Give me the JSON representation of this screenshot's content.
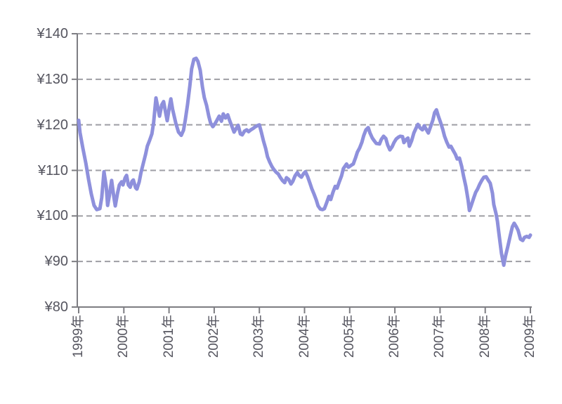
{
  "chart_data": {
    "type": "line",
    "title": "",
    "x_tick_labels": [
      "1999年",
      "2000年",
      "2001年",
      "2002年",
      "2003年",
      "2004年",
      "2005年",
      "2006年",
      "2007年",
      "2008年",
      "2009年"
    ],
    "y_tick_labels": [
      "¥140",
      "¥130",
      "¥120",
      "¥110",
      "¥100",
      "¥90",
      "¥80"
    ],
    "y_tick_values": [
      140,
      130,
      120,
      110,
      100,
      90,
      80
    ],
    "x_range": [
      1999,
      2009
    ],
    "ylim": [
      80,
      140
    ],
    "grid": {
      "horizontal": "dashed",
      "vertical": "none"
    },
    "legend": "none",
    "colors": {
      "line": "#8e90dc",
      "grid": "#9e9ea4",
      "axis": "#7d7d82",
      "label": "#55555f",
      "background": "#ffffff"
    },
    "series": [
      {
        "points": [
          [
            1999.0,
            121.0
          ],
          [
            1999.03,
            118.3
          ],
          [
            1999.09,
            115.0
          ],
          [
            1999.16,
            111.5
          ],
          [
            1999.22,
            108.0
          ],
          [
            1999.28,
            104.8
          ],
          [
            1999.34,
            102.3
          ],
          [
            1999.4,
            101.4
          ],
          [
            1999.47,
            101.6
          ],
          [
            1999.51,
            104.0
          ],
          [
            1999.56,
            109.7
          ],
          [
            1999.61,
            106.5
          ],
          [
            1999.64,
            102.3
          ],
          [
            1999.68,
            104.5
          ],
          [
            1999.73,
            107.8
          ],
          [
            1999.78,
            104.0
          ],
          [
            1999.81,
            102.2
          ],
          [
            1999.86,
            105.0
          ],
          [
            1999.9,
            106.8
          ],
          [
            1999.95,
            107.5
          ],
          [
            1999.98,
            106.8
          ],
          [
            2000.03,
            108.4
          ],
          [
            2000.06,
            108.9
          ],
          [
            2000.1,
            106.8
          ],
          [
            2000.14,
            106.3
          ],
          [
            2000.18,
            107.6
          ],
          [
            2000.21,
            107.9
          ],
          [
            2000.26,
            106.2
          ],
          [
            2000.29,
            105.9
          ],
          [
            2000.34,
            107.5
          ],
          [
            2000.38,
            109.5
          ],
          [
            2000.43,
            111.5
          ],
          [
            2000.48,
            113.5
          ],
          [
            2000.52,
            115.3
          ],
          [
            2000.57,
            116.6
          ],
          [
            2000.62,
            118.0
          ],
          [
            2000.66,
            120.5
          ],
          [
            2000.71,
            125.9
          ],
          [
            2000.76,
            123.4
          ],
          [
            2000.79,
            121.9
          ],
          [
            2000.84,
            124.4
          ],
          [
            2000.88,
            125.1
          ],
          [
            2000.93,
            122.4
          ],
          [
            2000.96,
            120.9
          ],
          [
            2001.01,
            124.0
          ],
          [
            2001.04,
            125.7
          ],
          [
            2001.08,
            123.4
          ],
          [
            2001.15,
            120.4
          ],
          [
            2001.21,
            118.4
          ],
          [
            2001.27,
            117.7
          ],
          [
            2001.32,
            118.8
          ],
          [
            2001.36,
            121.0
          ],
          [
            2001.41,
            124.5
          ],
          [
            2001.46,
            128.5
          ],
          [
            2001.5,
            132.3
          ],
          [
            2001.55,
            134.4
          ],
          [
            2001.6,
            134.6
          ],
          [
            2001.64,
            133.9
          ],
          [
            2001.69,
            132.0
          ],
          [
            2001.74,
            128.3
          ],
          [
            2001.78,
            126.0
          ],
          [
            2001.83,
            124.3
          ],
          [
            2001.88,
            121.9
          ],
          [
            2001.92,
            120.4
          ],
          [
            2001.97,
            119.6
          ],
          [
            2002.02,
            120.3
          ],
          [
            2002.06,
            121.0
          ],
          [
            2002.11,
            121.9
          ],
          [
            2002.16,
            120.8
          ],
          [
            2002.2,
            122.4
          ],
          [
            2002.25,
            121.5
          ],
          [
            2002.3,
            122.2
          ],
          [
            2002.34,
            121.0
          ],
          [
            2002.39,
            119.7
          ],
          [
            2002.44,
            118.4
          ],
          [
            2002.48,
            119.1
          ],
          [
            2002.53,
            119.9
          ],
          [
            2002.58,
            118.0
          ],
          [
            2002.62,
            117.8
          ],
          [
            2002.67,
            118.6
          ],
          [
            2002.72,
            118.9
          ],
          [
            2002.76,
            118.5
          ],
          [
            2002.81,
            118.9
          ],
          [
            2002.86,
            119.2
          ],
          [
            2002.9,
            119.5
          ],
          [
            2002.95,
            119.8
          ],
          [
            2003.0,
            120.0
          ],
          [
            2003.04,
            118.5
          ],
          [
            2003.09,
            116.5
          ],
          [
            2003.14,
            114.8
          ],
          [
            2003.18,
            113.0
          ],
          [
            2003.23,
            111.8
          ],
          [
            2003.28,
            110.8
          ],
          [
            2003.32,
            110.2
          ],
          [
            2003.37,
            109.6
          ],
          [
            2003.42,
            109.2
          ],
          [
            2003.46,
            108.5
          ],
          [
            2003.51,
            107.8
          ],
          [
            2003.56,
            107.3
          ],
          [
            2003.6,
            108.4
          ],
          [
            2003.65,
            108.0
          ],
          [
            2003.7,
            107.0
          ],
          [
            2003.74,
            107.6
          ],
          [
            2003.79,
            108.8
          ],
          [
            2003.84,
            109.5
          ],
          [
            2003.88,
            108.9
          ],
          [
            2003.93,
            108.5
          ],
          [
            2003.98,
            109.3
          ],
          [
            2004.02,
            109.7
          ],
          [
            2004.07,
            108.6
          ],
          [
            2004.12,
            107.2
          ],
          [
            2004.16,
            106.0
          ],
          [
            2004.21,
            104.8
          ],
          [
            2004.26,
            103.5
          ],
          [
            2004.3,
            102.2
          ],
          [
            2004.35,
            101.5
          ],
          [
            2004.4,
            101.4
          ],
          [
            2004.44,
            101.6
          ],
          [
            2004.49,
            102.9
          ],
          [
            2004.54,
            104.3
          ],
          [
            2004.58,
            103.6
          ],
          [
            2004.63,
            105.2
          ],
          [
            2004.68,
            106.5
          ],
          [
            2004.72,
            106.1
          ],
          [
            2004.77,
            107.5
          ],
          [
            2004.82,
            108.8
          ],
          [
            2004.86,
            110.4
          ],
          [
            2004.93,
            111.4
          ],
          [
            2004.97,
            110.7
          ],
          [
            2005.03,
            111.1
          ],
          [
            2005.08,
            111.4
          ],
          [
            2005.13,
            112.8
          ],
          [
            2005.17,
            114.0
          ],
          [
            2005.22,
            114.9
          ],
          [
            2005.27,
            116.2
          ],
          [
            2005.31,
            117.6
          ],
          [
            2005.36,
            118.9
          ],
          [
            2005.41,
            119.4
          ],
          [
            2005.45,
            118.2
          ],
          [
            2005.5,
            117.1
          ],
          [
            2005.55,
            116.4
          ],
          [
            2005.59,
            115.9
          ],
          [
            2005.66,
            115.8
          ],
          [
            2005.7,
            116.8
          ],
          [
            2005.75,
            117.5
          ],
          [
            2005.8,
            117.0
          ],
          [
            2005.84,
            115.6
          ],
          [
            2005.89,
            114.5
          ],
          [
            2005.94,
            115.2
          ],
          [
            2005.98,
            116.1
          ],
          [
            2006.03,
            116.9
          ],
          [
            2006.08,
            117.3
          ],
          [
            2006.12,
            117.5
          ],
          [
            2006.17,
            117.4
          ],
          [
            2006.2,
            116.1
          ],
          [
            2006.25,
            116.8
          ],
          [
            2006.29,
            117.1
          ],
          [
            2006.32,
            115.3
          ],
          [
            2006.37,
            116.5
          ],
          [
            2006.42,
            118.2
          ],
          [
            2006.47,
            119.3
          ],
          [
            2006.51,
            120.1
          ],
          [
            2006.56,
            119.3
          ],
          [
            2006.61,
            118.9
          ],
          [
            2006.65,
            119.8
          ],
          [
            2006.7,
            118.9
          ],
          [
            2006.74,
            118.2
          ],
          [
            2006.79,
            119.6
          ],
          [
            2006.84,
            121.0
          ],
          [
            2006.88,
            122.7
          ],
          [
            2006.92,
            123.3
          ],
          [
            2006.96,
            122.0
          ],
          [
            2007.01,
            120.6
          ],
          [
            2007.06,
            119.0
          ],
          [
            2007.1,
            117.5
          ],
          [
            2007.15,
            116.2
          ],
          [
            2007.2,
            115.1
          ],
          [
            2007.24,
            115.3
          ],
          [
            2007.29,
            114.4
          ],
          [
            2007.34,
            113.5
          ],
          [
            2007.38,
            112.5
          ],
          [
            2007.43,
            112.7
          ],
          [
            2007.48,
            110.8
          ],
          [
            2007.52,
            108.8
          ],
          [
            2007.57,
            106.5
          ],
          [
            2007.62,
            103.5
          ],
          [
            2007.65,
            101.2
          ],
          [
            2007.69,
            102.3
          ],
          [
            2007.74,
            103.8
          ],
          [
            2007.79,
            105.2
          ],
          [
            2007.83,
            105.9
          ],
          [
            2007.88,
            107.0
          ],
          [
            2007.93,
            107.9
          ],
          [
            2007.97,
            108.5
          ],
          [
            2008.02,
            108.6
          ],
          [
            2008.07,
            107.8
          ],
          [
            2008.11,
            107.2
          ],
          [
            2008.16,
            105.0
          ],
          [
            2008.19,
            102.5
          ],
          [
            2008.24,
            100.5
          ],
          [
            2008.27,
            98.8
          ],
          [
            2008.3,
            96.4
          ],
          [
            2008.33,
            94.1
          ],
          [
            2008.36,
            91.8
          ],
          [
            2008.41,
            89.2
          ],
          [
            2008.45,
            91.2
          ],
          [
            2008.5,
            93.3
          ],
          [
            2008.55,
            95.5
          ],
          [
            2008.6,
            97.6
          ],
          [
            2008.64,
            98.4
          ],
          [
            2008.69,
            97.6
          ],
          [
            2008.73,
            96.8
          ],
          [
            2008.78,
            94.9
          ],
          [
            2008.83,
            94.6
          ],
          [
            2008.87,
            95.3
          ],
          [
            2008.92,
            95.5
          ],
          [
            2008.97,
            95.3
          ],
          [
            2009.0,
            95.8
          ]
        ]
      }
    ]
  }
}
